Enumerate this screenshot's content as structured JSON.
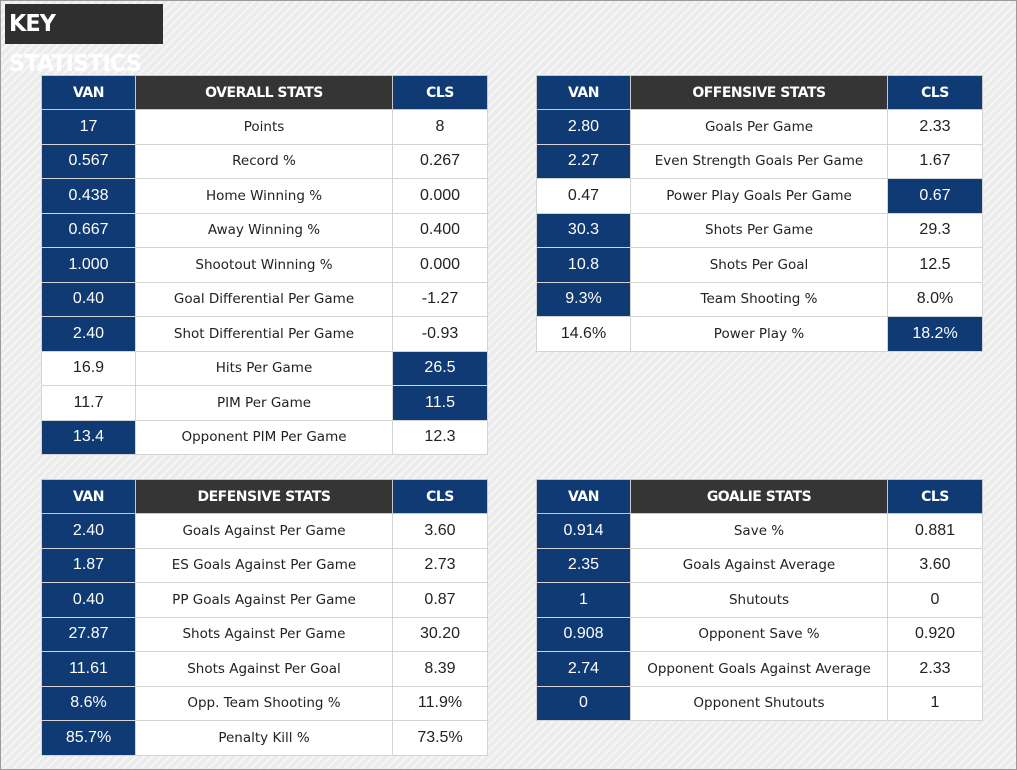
{
  "header": {
    "title": "KEY STATISTICS"
  },
  "colors": {
    "highlight": "#0f3a74",
    "category_header": "#353535"
  },
  "panels": [
    {
      "id": "overall",
      "team_left": "VAN",
      "category": "OVERALL STATS",
      "team_right": "CLS",
      "rows": [
        {
          "left": "17",
          "label": "Points",
          "right": "8",
          "leader": "left"
        },
        {
          "left": "0.567",
          "label": "Record %",
          "right": "0.267",
          "leader": "left"
        },
        {
          "left": "0.438",
          "label": "Home Winning %",
          "right": "0.000",
          "leader": "left"
        },
        {
          "left": "0.667",
          "label": "Away Winning %",
          "right": "0.400",
          "leader": "left"
        },
        {
          "left": "1.000",
          "label": "Shootout Winning %",
          "right": "0.000",
          "leader": "left"
        },
        {
          "left": "0.40",
          "label": "Goal Differential Per Game",
          "right": "-1.27",
          "leader": "left"
        },
        {
          "left": "2.40",
          "label": "Shot Differential Per Game",
          "right": "-0.93",
          "leader": "left"
        },
        {
          "left": "16.9",
          "label": "Hits Per Game",
          "right": "26.5",
          "leader": "right"
        },
        {
          "left": "11.7",
          "label": "PIM Per Game",
          "right": "11.5",
          "leader": "right"
        },
        {
          "left": "13.4",
          "label": "Opponent PIM Per Game",
          "right": "12.3",
          "leader": "left"
        }
      ]
    },
    {
      "id": "offensive",
      "team_left": "VAN",
      "category": "OFFENSIVE STATS",
      "team_right": "CLS",
      "rows": [
        {
          "left": "2.80",
          "label": "Goals Per Game",
          "right": "2.33",
          "leader": "left"
        },
        {
          "left": "2.27",
          "label": "Even Strength Goals Per Game",
          "right": "1.67",
          "leader": "left"
        },
        {
          "left": "0.47",
          "label": "Power Play Goals Per Game",
          "right": "0.67",
          "leader": "right"
        },
        {
          "left": "30.3",
          "label": "Shots Per Game",
          "right": "29.3",
          "leader": "left"
        },
        {
          "left": "10.8",
          "label": "Shots Per Goal",
          "right": "12.5",
          "leader": "left"
        },
        {
          "left": "9.3%",
          "label": "Team Shooting %",
          "right": "8.0%",
          "leader": "left"
        },
        {
          "left": "14.6%",
          "label": "Power Play %",
          "right": "18.2%",
          "leader": "right"
        }
      ]
    },
    {
      "id": "defensive",
      "team_left": "VAN",
      "category": "DEFENSIVE STATS",
      "team_right": "CLS",
      "rows": [
        {
          "left": "2.40",
          "label": "Goals Against Per Game",
          "right": "3.60",
          "leader": "left"
        },
        {
          "left": "1.87",
          "label": "ES Goals Against Per Game",
          "right": "2.73",
          "leader": "left"
        },
        {
          "left": "0.40",
          "label": "PP Goals Against Per Game",
          "right": "0.87",
          "leader": "left"
        },
        {
          "left": "27.87",
          "label": "Shots Against Per Game",
          "right": "30.20",
          "leader": "left"
        },
        {
          "left": "11.61",
          "label": "Shots Against Per Goal",
          "right": "8.39",
          "leader": "left"
        },
        {
          "left": "8.6%",
          "label": "Opp. Team Shooting %",
          "right": "11.9%",
          "leader": "left"
        },
        {
          "left": "85.7%",
          "label": "Penalty Kill %",
          "right": "73.5%",
          "leader": "left"
        }
      ]
    },
    {
      "id": "goalie",
      "team_left": "VAN",
      "category": "GOALIE STATS",
      "team_right": "CLS",
      "rows": [
        {
          "left": "0.914",
          "label": "Save %",
          "right": "0.881",
          "leader": "left"
        },
        {
          "left": "2.35",
          "label": "Goals Against Average",
          "right": "3.60",
          "leader": "left"
        },
        {
          "left": "1",
          "label": "Shutouts",
          "right": "0",
          "leader": "left"
        },
        {
          "left": "0.908",
          "label": "Opponent Save %",
          "right": "0.920",
          "leader": "left"
        },
        {
          "left": "2.74",
          "label": "Opponent Goals Against Average",
          "right": "2.33",
          "leader": "left"
        },
        {
          "left": "0",
          "label": "Opponent Shutouts",
          "right": "1",
          "leader": "left"
        }
      ]
    }
  ]
}
